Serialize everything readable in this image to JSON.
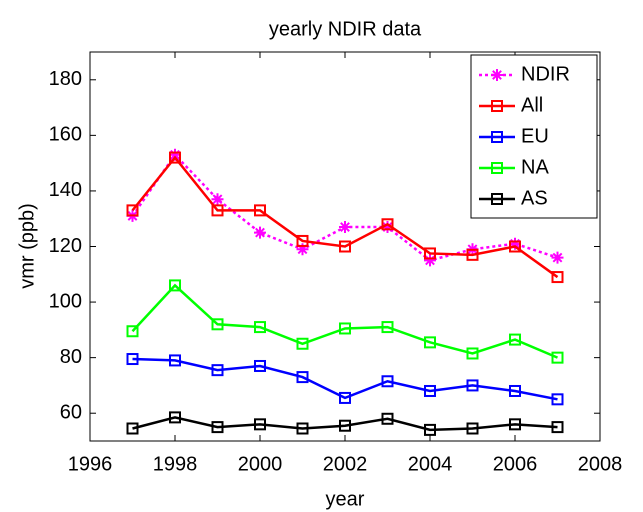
{
  "chart_data": {
    "type": "line",
    "title": "yearly NDIR data",
    "xlabel": "year",
    "ylabel": "vmr (ppb)",
    "x": [
      1997,
      1998,
      1999,
      2000,
      2001,
      2002,
      2003,
      2004,
      2005,
      2006,
      2007
    ],
    "series": [
      {
        "name": "NDIR",
        "color": "#ff00ff",
        "marker": "star",
        "dash": "dotted",
        "values": [
          131,
          153,
          137,
          125,
          119,
          127,
          127,
          115,
          119,
          121,
          116
        ]
      },
      {
        "name": "All",
        "color": "#ff0000",
        "marker": "square",
        "dash": "solid",
        "values": [
          133,
          152,
          133,
          133,
          122,
          120,
          128,
          117.5,
          117,
          120,
          109
        ]
      },
      {
        "name": "EU",
        "color": "#0000ff",
        "marker": "square",
        "dash": "solid",
        "values": [
          79.5,
          79,
          75.5,
          77,
          73,
          65.5,
          71.5,
          68,
          70,
          68,
          65
        ]
      },
      {
        "name": "NA",
        "color": "#00ff00",
        "marker": "square",
        "dash": "solid",
        "values": [
          89.5,
          106,
          92,
          91,
          85,
          90.5,
          91,
          85.5,
          81.5,
          86.5,
          80
        ]
      },
      {
        "name": "AS",
        "color": "#000000",
        "marker": "square",
        "dash": "solid",
        "values": [
          54.5,
          58.5,
          55,
          56,
          54.5,
          55.5,
          58,
          54,
          54.5,
          56,
          55
        ]
      }
    ],
    "xlim": [
      1996,
      2008
    ],
    "xticks": [
      1996,
      1998,
      2000,
      2002,
      2004,
      2006,
      2008
    ],
    "ylim": [
      50,
      190
    ],
    "yticks": [
      60,
      80,
      100,
      120,
      140,
      160,
      180
    ],
    "grid": false,
    "legend": "northeast"
  }
}
